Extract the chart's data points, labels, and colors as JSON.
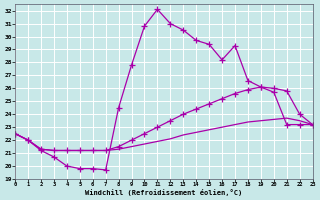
{
  "xlabel": "Windchill (Refroidissement éolien,°C)",
  "xlim": [
    0,
    23
  ],
  "ylim": [
    19,
    32.5
  ],
  "yticks": [
    19,
    20,
    21,
    22,
    23,
    24,
    25,
    26,
    27,
    28,
    29,
    30,
    31,
    32
  ],
  "xticks": [
    0,
    1,
    2,
    3,
    4,
    5,
    6,
    7,
    8,
    9,
    10,
    11,
    12,
    13,
    14,
    15,
    16,
    17,
    18,
    19,
    20,
    21,
    22,
    23
  ],
  "bg_color": "#c8e8e8",
  "grid_color": "#aacccc",
  "line_color": "#aa00aa",
  "curve1_x": [
    0,
    1,
    2,
    3,
    4,
    5,
    6,
    7,
    8,
    9,
    10,
    11,
    12,
    13,
    14,
    15,
    16,
    17,
    18,
    19,
    20,
    21,
    22,
    23
  ],
  "curve1_y": [
    22.5,
    22.0,
    21.2,
    20.7,
    20.0,
    19.8,
    19.8,
    19.7,
    24.5,
    27.8,
    30.8,
    32.1,
    31.0,
    30.5,
    29.7,
    29.4,
    28.2,
    29.3,
    26.6,
    26.1,
    25.7,
    23.2,
    23.2,
    23.2
  ],
  "curve2_x": [
    0,
    1,
    2,
    3,
    4,
    5,
    6,
    7,
    8,
    9,
    10,
    11,
    12,
    13,
    14,
    15,
    16,
    17,
    18,
    19,
    20,
    21,
    22,
    23
  ],
  "curve2_y": [
    22.5,
    22.0,
    21.3,
    21.2,
    21.2,
    21.2,
    21.2,
    21.2,
    21.5,
    22.0,
    22.5,
    23.0,
    23.5,
    24.0,
    24.4,
    24.8,
    25.2,
    25.6,
    25.9,
    26.1,
    26.0,
    25.8,
    24.0,
    23.2
  ],
  "curve3_x": [
    0,
    1,
    2,
    3,
    4,
    5,
    6,
    7,
    8,
    9,
    10,
    11,
    12,
    13,
    14,
    15,
    16,
    17,
    18,
    19,
    20,
    21,
    22,
    23
  ],
  "curve3_y": [
    22.5,
    22.0,
    21.3,
    21.2,
    21.2,
    21.2,
    21.2,
    21.2,
    21.3,
    21.5,
    21.7,
    21.9,
    22.1,
    22.4,
    22.6,
    22.8,
    23.0,
    23.2,
    23.4,
    23.5,
    23.6,
    23.7,
    23.5,
    23.2
  ]
}
